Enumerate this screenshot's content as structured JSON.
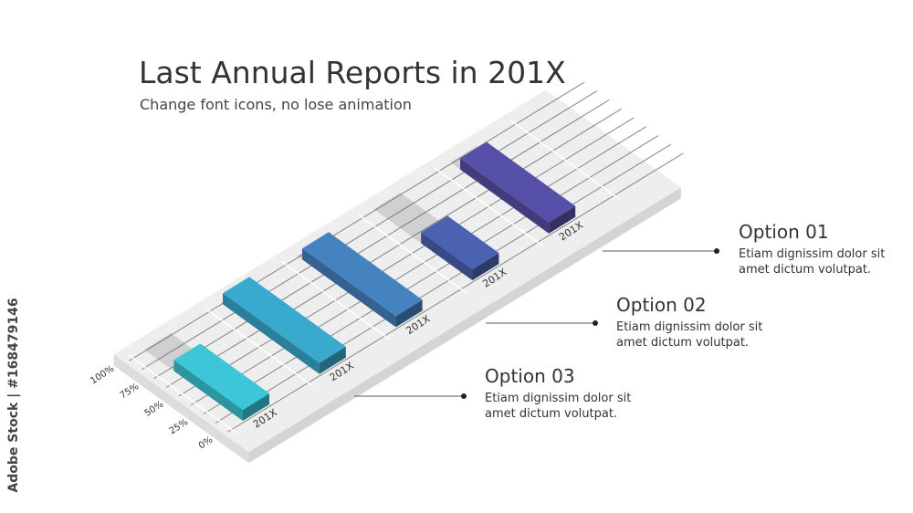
{
  "header": {
    "title": "Last Annual Reports in 201X",
    "subtitle": "Change font icons, no lose animation"
  },
  "chart_data": {
    "type": "bar",
    "title": "Last Annual Reports in 201X",
    "subtitle": "Change font icons, no lose animation",
    "categories": [
      "201X",
      "201X",
      "201X",
      "201X",
      "201X"
    ],
    "values": [
      0.7,
      0.98,
      0.95,
      0.52,
      0.9
    ],
    "y_ticks": [
      "0%",
      "25%",
      "50%",
      "75%",
      "100%"
    ],
    "ylim": [
      0,
      1
    ],
    "grid": true,
    "colors": [
      "#3cc6d8",
      "#3aa9ce",
      "#4482c0",
      "#4b62b0",
      "#5650a8"
    ]
  },
  "options": [
    {
      "title": "Option 01",
      "text_line1": "Etiam dignissim dolor sit",
      "text_line2": "amet dictum volutpat."
    },
    {
      "title": "Option 02",
      "text_line1": "Etiam dignissim dolor sit",
      "text_line2": "amet dictum volutpat."
    },
    {
      "title": "Option 03",
      "text_line1": "Etiam dignissim dolor sit",
      "text_line2": "amet dictum volutpat."
    }
  ],
  "watermark": {
    "text": "Adobe Stock | #168479146"
  }
}
